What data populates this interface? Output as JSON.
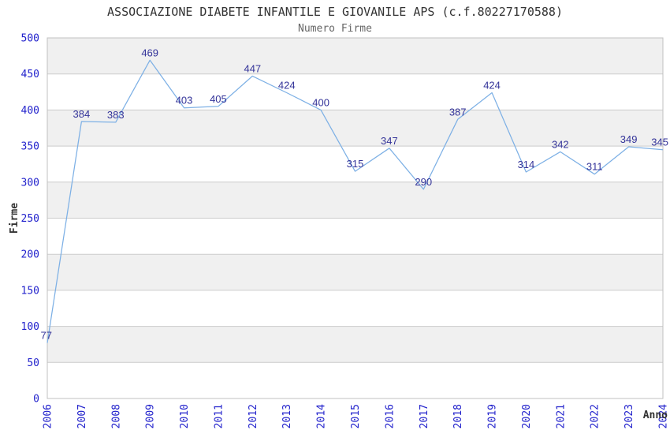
{
  "chart_data": {
    "type": "line",
    "title": "ASSOCIAZIONE DIABETE INFANTILE E GIOVANILE APS (c.f.80227170588)",
    "subtitle": "Numero Firme",
    "xlabel": "Anno",
    "ylabel": "Firme",
    "categories": [
      "2006",
      "2007",
      "2008",
      "2009",
      "2010",
      "2011",
      "2012",
      "2013",
      "2014",
      "2015",
      "2016",
      "2017",
      "2018",
      "2019",
      "2020",
      "2021",
      "2022",
      "2023",
      "2024"
    ],
    "values": [
      77,
      384,
      383,
      469,
      403,
      405,
      447,
      424,
      400,
      315,
      347,
      290,
      387,
      424,
      314,
      342,
      311,
      349,
      345
    ],
    "ylim": [
      0,
      500
    ],
    "ytick_step": 50,
    "grid": "horizontal-bands-alternating",
    "legend": "none",
    "colors": {
      "line": "#7db0e5",
      "data_label": "#333399",
      "tick_label": "#2222cc",
      "title": "#333333",
      "subtitle": "#666666",
      "axis_title": "#333333",
      "band_gray": "#f0f0f0",
      "band_white": "#ffffff",
      "gridline": "#cccccc",
      "border": "#c0c0c0",
      "background": "#ffffff"
    }
  }
}
